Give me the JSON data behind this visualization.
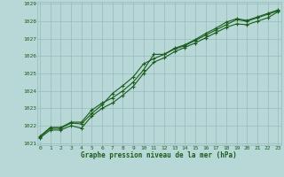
{
  "title": "Graphe pression niveau de la mer (hPa)",
  "bg_color": "#b8d8d8",
  "grid_color": "#99bbbb",
  "line_color": "#1a5c1a",
  "marker_color": "#1a5c1a",
  "x_min": 0,
  "x_max": 23,
  "y_min": 1021,
  "y_max": 1029,
  "x_ticks": [
    0,
    1,
    2,
    3,
    4,
    5,
    6,
    7,
    8,
    9,
    10,
    11,
    12,
    13,
    14,
    15,
    16,
    17,
    18,
    19,
    20,
    21,
    22,
    23
  ],
  "y_ticks": [
    1021,
    1022,
    1023,
    1024,
    1025,
    1026,
    1027,
    1028,
    1029
  ],
  "series1": [
    1021.4,
    1021.9,
    1021.9,
    1022.2,
    1022.2,
    1022.9,
    1023.3,
    1023.6,
    1024.0,
    1024.5,
    1025.2,
    1026.1,
    1026.1,
    1026.4,
    1026.6,
    1026.9,
    1027.2,
    1027.5,
    1027.8,
    1028.1,
    1028.0,
    1028.2,
    1028.4,
    1028.6
  ],
  "series2": [
    1021.35,
    1021.85,
    1021.85,
    1022.15,
    1022.1,
    1022.7,
    1023.2,
    1023.85,
    1024.3,
    1024.8,
    1025.55,
    1025.85,
    1026.1,
    1026.45,
    1026.65,
    1026.95,
    1027.3,
    1027.6,
    1027.95,
    1028.15,
    1028.05,
    1028.25,
    1028.45,
    1028.65
  ],
  "series3": [
    1021.3,
    1021.75,
    1021.75,
    1022.0,
    1021.85,
    1022.55,
    1023.0,
    1023.3,
    1023.75,
    1024.25,
    1025.0,
    1025.65,
    1025.9,
    1026.25,
    1026.5,
    1026.75,
    1027.05,
    1027.35,
    1027.65,
    1027.85,
    1027.8,
    1028.0,
    1028.2,
    1028.55
  ]
}
